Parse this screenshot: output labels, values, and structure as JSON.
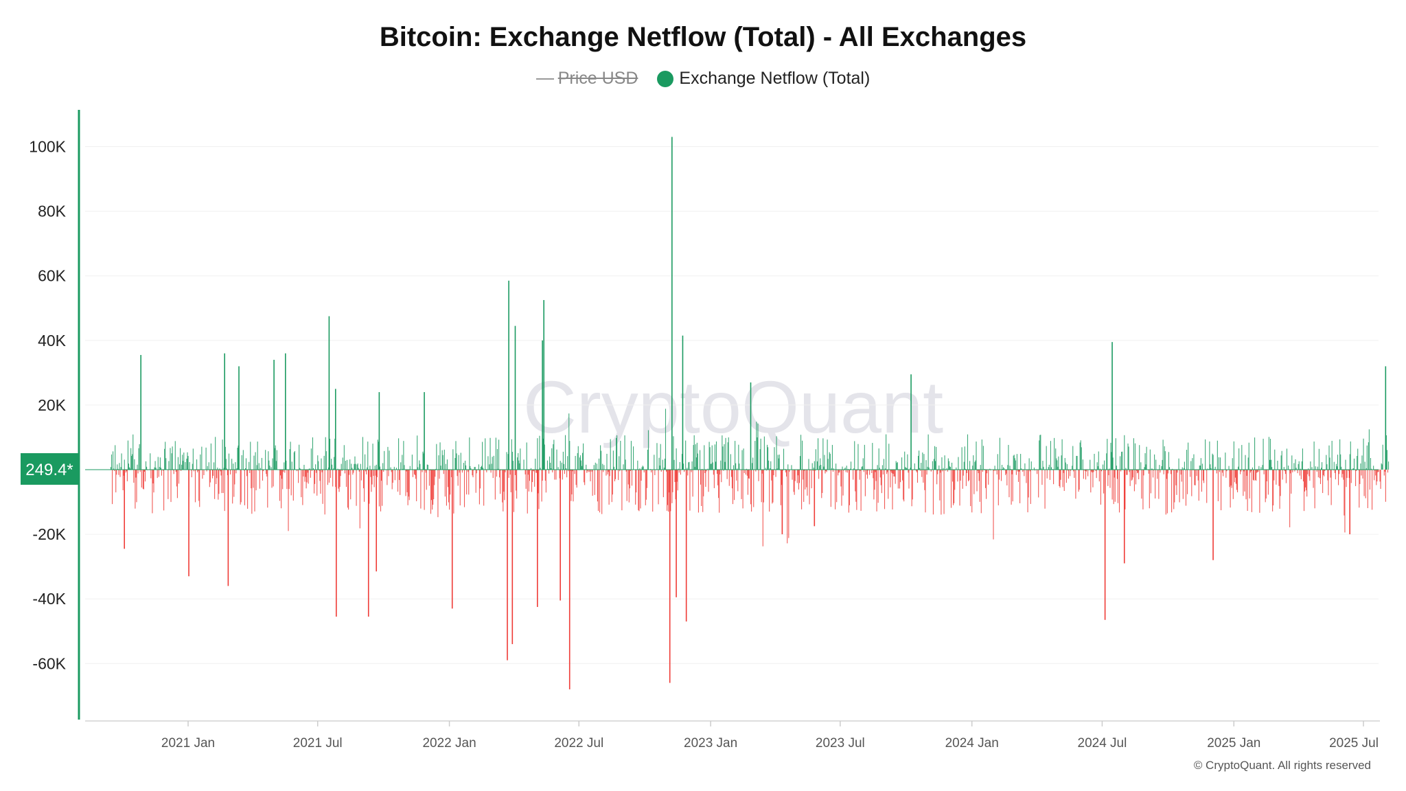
{
  "chart_data": {
    "type": "bar",
    "title": "Bitcoin: Exchange Netflow (Total) - All Exchanges",
    "legend": [
      {
        "name": "Price USD",
        "hidden": true,
        "color": "#999999"
      },
      {
        "name": "Exchange Netflow (Total)",
        "hidden": false,
        "color": "#1a9a60"
      }
    ],
    "legend_placement": "top-center",
    "ylim": [
      -75000,
      112000
    ],
    "y_ticks": [
      100000,
      80000,
      60000,
      40000,
      20000,
      0,
      -20000,
      -40000,
      -60000
    ],
    "y_tick_labels": [
      "100K",
      "80K",
      "60K",
      "40K",
      "20K",
      "",
      "-20K",
      "-40K",
      "-60K"
    ],
    "x_range": [
      "2020-09-15",
      "2025-08-05"
    ],
    "x_tick_labels": [
      "2021 Jan",
      "2021 Jul",
      "2022 Jan",
      "2022 Jul",
      "2023 Jan",
      "2023 Jul",
      "2024 Jan",
      "2024 Jul",
      "2025 Jan",
      "2025 Jul"
    ],
    "x_tick_dates": [
      "2021-01-01",
      "2021-07-01",
      "2022-01-01",
      "2022-07-01",
      "2023-01-01",
      "2023-07-01",
      "2024-01-01",
      "2024-07-01",
      "2025-01-01",
      "2025-07-01"
    ],
    "positive_color": "#1a9a60",
    "negative_color": "#ef3b36",
    "grid": true,
    "current_value_label": "249.4*",
    "watermark": "CryptoQuant",
    "copyright": "© CryptoQuant. All rights reserved",
    "series": [
      {
        "name": "Exchange Netflow (Total)",
        "points": [
          [
            "2020-10-27",
            35500
          ],
          [
            "2021-02-21",
            36000
          ],
          [
            "2021-03-13",
            32000
          ],
          [
            "2021-05-01",
            34000
          ],
          [
            "2021-05-17",
            36000
          ],
          [
            "2021-07-17",
            47500
          ],
          [
            "2021-07-26",
            25000
          ],
          [
            "2021-09-25",
            24000
          ],
          [
            "2021-11-27",
            24000
          ],
          [
            "2022-03-25",
            58500
          ],
          [
            "2022-04-03",
            44500
          ],
          [
            "2022-05-11",
            40000
          ],
          [
            "2022-05-13",
            52500
          ],
          [
            "2022-11-08",
            103000
          ],
          [
            "2022-11-23",
            41500
          ],
          [
            "2023-02-26",
            27000
          ],
          [
            "2023-10-08",
            29500
          ],
          [
            "2024-07-15",
            39500
          ],
          [
            "2025-08-01",
            32000
          ],
          [
            "2020-10-04",
            -24500
          ],
          [
            "2021-01-02",
            -33000
          ],
          [
            "2021-02-26",
            -36000
          ],
          [
            "2021-07-27",
            -45500
          ],
          [
            "2021-09-10",
            -45500
          ],
          [
            "2021-09-21",
            -31500
          ],
          [
            "2022-01-05",
            -43000
          ],
          [
            "2022-03-23",
            -59000
          ],
          [
            "2022-03-30",
            -54000
          ],
          [
            "2022-05-04",
            -42500
          ],
          [
            "2022-06-05",
            -40500
          ],
          [
            "2022-06-18",
            -68000
          ],
          [
            "2022-11-05",
            -66000
          ],
          [
            "2022-11-14",
            -39500
          ],
          [
            "2022-11-28",
            -47000
          ],
          [
            "2023-04-11",
            -20000
          ],
          [
            "2023-05-26",
            -17500
          ],
          [
            "2024-07-05",
            -46500
          ],
          [
            "2024-08-01",
            -29000
          ],
          [
            "2024-12-03",
            -28000
          ],
          [
            "2025-06-12",
            -20000
          ]
        ]
      }
    ]
  }
}
